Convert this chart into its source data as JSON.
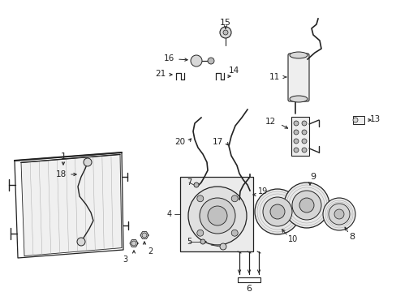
{
  "bg_color": "#ffffff",
  "fig_width": 4.89,
  "fig_height": 3.6,
  "dpi": 100,
  "gray": "#222222",
  "light_fill": "#eeeeee",
  "mid_fill": "#d8d8d8",
  "box_fill": "#e8e8e8"
}
